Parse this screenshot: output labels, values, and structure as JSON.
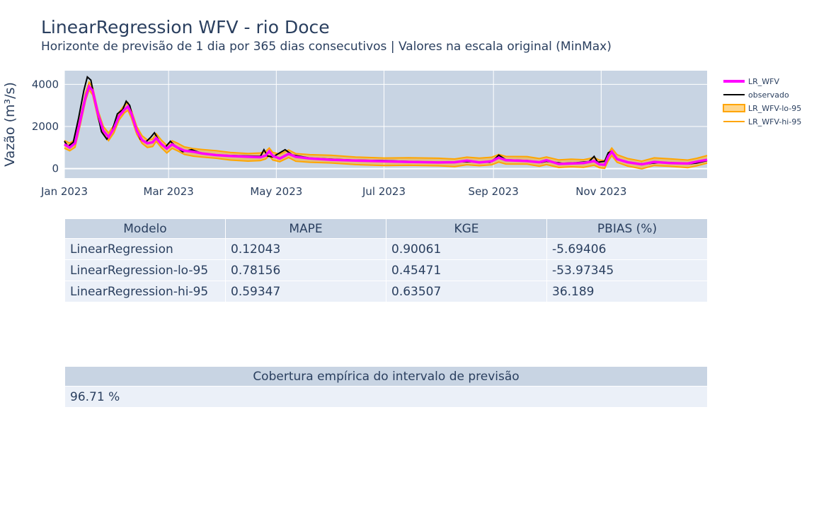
{
  "title": "LinearRegression WFV - rio Doce",
  "subtitle": "Horizonte de previsão de 1 dia por 365 dias consecutivos | Valores na escala original (MinMax)",
  "colors": {
    "plot_bg": "#c8d4e3",
    "forecast": "#ff00ff",
    "observed": "#000000",
    "interval": "#ffa500",
    "interval_fill": "rgba(255,165,0,0.45)",
    "text": "#2a3f5f",
    "header_bg": "#c8d4e3",
    "cell_bg": "#ebf0f8"
  },
  "chart_data": {
    "type": "line",
    "title": "",
    "xlabel": "",
    "ylabel": "Vazão (m³/s)",
    "x_start": "2023-01-01",
    "x_range": [
      "2023-01-01",
      "2023-12-31"
    ],
    "ylim": [
      -450,
      4650
    ],
    "x_ticks": [
      {
        "date": "2023-01-01",
        "label": "Jan 2023"
      },
      {
        "date": "2023-03-01",
        "label": "Mar 2023"
      },
      {
        "date": "2023-05-01",
        "label": "May 2023"
      },
      {
        "date": "2023-07-01",
        "label": "Jul 2023"
      },
      {
        "date": "2023-09-01",
        "label": "Sep 2023"
      },
      {
        "date": "2023-11-01",
        "label": "Nov 2023"
      }
    ],
    "y_ticks": [
      0,
      2000,
      4000
    ],
    "grid": true,
    "legend_position": "right",
    "band_half_width": 180,
    "series": [
      {
        "name": "LR_WFV",
        "points": [
          [
            "2023-01-01",
            1150
          ],
          [
            "2023-01-04",
            1000
          ],
          [
            "2023-01-07",
            1200
          ],
          [
            "2023-01-10",
            2300
          ],
          [
            "2023-01-13",
            3400
          ],
          [
            "2023-01-15",
            3900
          ],
          [
            "2023-01-17",
            3700
          ],
          [
            "2023-01-20",
            2600
          ],
          [
            "2023-01-23",
            1800
          ],
          [
            "2023-01-26",
            1500
          ],
          [
            "2023-01-29",
            1900
          ],
          [
            "2023-02-01",
            2500
          ],
          [
            "2023-02-04",
            2800
          ],
          [
            "2023-02-06",
            2950
          ],
          [
            "2023-02-08",
            2600
          ],
          [
            "2023-02-11",
            1800
          ],
          [
            "2023-02-14",
            1350
          ],
          [
            "2023-02-17",
            1200
          ],
          [
            "2023-02-20",
            1250
          ],
          [
            "2023-02-22",
            1450
          ],
          [
            "2023-02-25",
            1150
          ],
          [
            "2023-02-28",
            950
          ],
          [
            "2023-03-03",
            1150
          ],
          [
            "2023-03-06",
            1000
          ],
          [
            "2023-03-10",
            850
          ],
          [
            "2023-03-15",
            800
          ],
          [
            "2023-03-20",
            720
          ],
          [
            "2023-03-28",
            640
          ],
          [
            "2023-04-05",
            600
          ],
          [
            "2023-04-15",
            560
          ],
          [
            "2023-04-22",
            540
          ],
          [
            "2023-04-25",
            620
          ],
          [
            "2023-04-27",
            820
          ],
          [
            "2023-04-29",
            600
          ],
          [
            "2023-05-03",
            480
          ],
          [
            "2023-05-08",
            700
          ],
          [
            "2023-05-12",
            560
          ],
          [
            "2023-05-20",
            480
          ],
          [
            "2023-06-01",
            420
          ],
          [
            "2023-06-15",
            380
          ],
          [
            "2023-07-01",
            350
          ],
          [
            "2023-07-15",
            320
          ],
          [
            "2023-08-01",
            290
          ],
          [
            "2023-08-10",
            300
          ],
          [
            "2023-08-17",
            380
          ],
          [
            "2023-08-24",
            290
          ],
          [
            "2023-08-31",
            350
          ],
          [
            "2023-09-04",
            520
          ],
          [
            "2023-09-08",
            400
          ],
          [
            "2023-09-20",
            360
          ],
          [
            "2023-09-27",
            300
          ],
          [
            "2023-10-01",
            400
          ],
          [
            "2023-10-08",
            220
          ],
          [
            "2023-10-15",
            240
          ],
          [
            "2023-10-22",
            260
          ],
          [
            "2023-10-28",
            360
          ],
          [
            "2023-10-31",
            200
          ],
          [
            "2023-11-03",
            180
          ],
          [
            "2023-11-05",
            580
          ],
          [
            "2023-11-07",
            800
          ],
          [
            "2023-11-10",
            450
          ],
          [
            "2023-11-16",
            300
          ],
          [
            "2023-11-24",
            200
          ],
          [
            "2023-12-01",
            320
          ],
          [
            "2023-12-10",
            260
          ],
          [
            "2023-12-20",
            240
          ],
          [
            "2023-12-25",
            330
          ],
          [
            "2023-12-31",
            420
          ]
        ]
      },
      {
        "name": "observado",
        "points": [
          [
            "2023-01-01",
            1300
          ],
          [
            "2023-01-03",
            1050
          ],
          [
            "2023-01-06",
            1250
          ],
          [
            "2023-01-09",
            2400
          ],
          [
            "2023-01-12",
            3700
          ],
          [
            "2023-01-14",
            4350
          ],
          [
            "2023-01-16",
            4200
          ],
          [
            "2023-01-19",
            2900
          ],
          [
            "2023-01-22",
            1750
          ],
          [
            "2023-01-25",
            1400
          ],
          [
            "2023-01-28",
            1800
          ],
          [
            "2023-01-31",
            2600
          ],
          [
            "2023-02-03",
            2800
          ],
          [
            "2023-02-05",
            3200
          ],
          [
            "2023-02-07",
            3000
          ],
          [
            "2023-02-10",
            2000
          ],
          [
            "2023-02-13",
            1400
          ],
          [
            "2023-02-16",
            1250
          ],
          [
            "2023-02-19",
            1500
          ],
          [
            "2023-02-21",
            1700
          ],
          [
            "2023-02-24",
            1250
          ],
          [
            "2023-02-27",
            1000
          ],
          [
            "2023-03-02",
            1300
          ],
          [
            "2023-03-05",
            1050
          ],
          [
            "2023-03-09",
            800
          ],
          [
            "2023-03-14",
            900
          ],
          [
            "2023-03-20",
            720
          ],
          [
            "2023-03-28",
            650
          ],
          [
            "2023-04-05",
            620
          ],
          [
            "2023-04-15",
            600
          ],
          [
            "2023-04-22",
            580
          ],
          [
            "2023-04-24",
            900
          ],
          [
            "2023-04-26",
            600
          ],
          [
            "2023-04-29",
            550
          ],
          [
            "2023-05-02",
            700
          ],
          [
            "2023-05-06",
            900
          ],
          [
            "2023-05-10",
            650
          ],
          [
            "2023-05-20",
            500
          ],
          [
            "2023-06-01",
            450
          ],
          [
            "2023-06-15",
            400
          ],
          [
            "2023-07-01",
            380
          ],
          [
            "2023-07-15",
            340
          ],
          [
            "2023-08-01",
            300
          ],
          [
            "2023-08-15",
            330
          ],
          [
            "2023-08-30",
            300
          ],
          [
            "2023-09-02",
            480
          ],
          [
            "2023-09-04",
            640
          ],
          [
            "2023-09-08",
            420
          ],
          [
            "2023-09-20",
            380
          ],
          [
            "2023-09-28",
            290
          ],
          [
            "2023-10-01",
            350
          ],
          [
            "2023-10-10",
            250
          ],
          [
            "2023-10-18",
            280
          ],
          [
            "2023-10-25",
            330
          ],
          [
            "2023-10-28",
            580
          ],
          [
            "2023-10-30",
            300
          ],
          [
            "2023-11-03",
            350
          ],
          [
            "2023-11-05",
            750
          ],
          [
            "2023-11-07",
            820
          ],
          [
            "2023-11-10",
            450
          ],
          [
            "2023-11-18",
            260
          ],
          [
            "2023-11-26",
            220
          ],
          [
            "2023-12-05",
            300
          ],
          [
            "2023-12-15",
            260
          ],
          [
            "2023-12-20",
            220
          ],
          [
            "2023-12-25",
            260
          ],
          [
            "2023-12-31",
            380
          ]
        ]
      },
      {
        "name": "LR_WFV-lo-95"
      },
      {
        "name": "LR_WFV-hi-95"
      }
    ]
  },
  "metrics_table": {
    "headers": [
      "Modelo",
      "MAPE",
      "KGE",
      "PBIAS (%)"
    ],
    "rows": [
      [
        "LinearRegression",
        "0.12043",
        "0.90061",
        "-5.69406"
      ],
      [
        "LinearRegression-lo-95",
        "0.78156",
        "0.45471",
        "-53.97345"
      ],
      [
        "LinearRegression-hi-95",
        "0.59347",
        "0.63507",
        "36.189"
      ]
    ]
  },
  "coverage_table": {
    "header": "Cobertura empírica do intervalo de previsão",
    "value": "96.71 %"
  }
}
